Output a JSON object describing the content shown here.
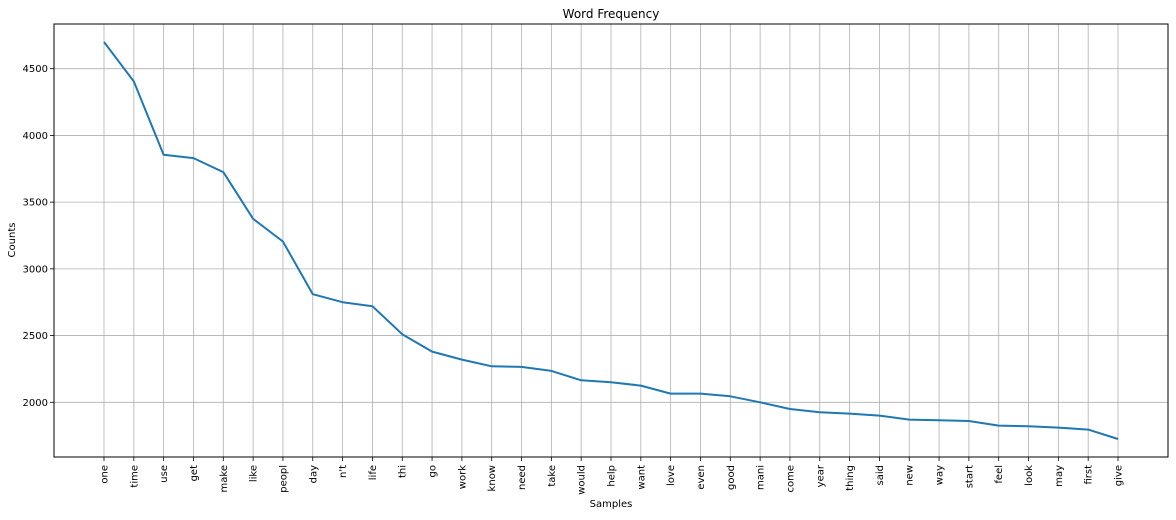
{
  "chart_data": {
    "type": "line",
    "title": "Word Frequency",
    "xlabel": "Samples",
    "ylabel": "Counts",
    "categories": [
      "one",
      "time",
      "use",
      "get",
      "make",
      "like",
      "peopl",
      "day",
      "n't",
      "life",
      "thi",
      "go",
      "work",
      "know",
      "need",
      "take",
      "would",
      "help",
      "want",
      "love",
      "even",
      "good",
      "mani",
      "come",
      "year",
      "thing",
      "said",
      "new",
      "way",
      "start",
      "feel",
      "look",
      "may",
      "first",
      "give"
    ],
    "values": [
      4700,
      4405,
      3855,
      3830,
      3725,
      3375,
      3205,
      2810,
      2750,
      2720,
      2510,
      2380,
      2320,
      2270,
      2265,
      2235,
      2165,
      2150,
      2125,
      2065,
      2065,
      2045,
      2000,
      1950,
      1925,
      1915,
      1900,
      1870,
      1865,
      1860,
      1825,
      1820,
      1810,
      1795,
      1725
    ],
    "ylim": [
      1590,
      4835
    ],
    "yticks": [
      2000,
      2500,
      3000,
      3500,
      4000,
      4500
    ],
    "grid": true,
    "line_color": "#1f77b4"
  }
}
